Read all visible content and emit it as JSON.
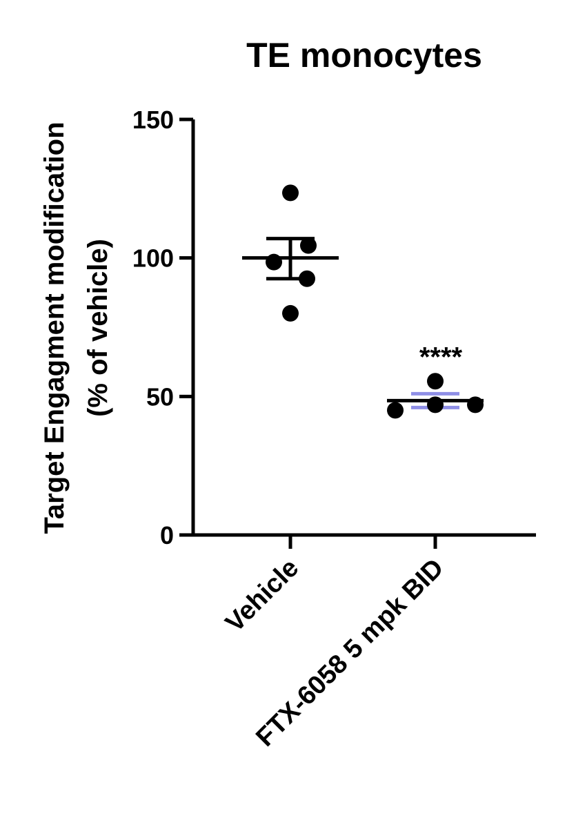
{
  "chart_data": {
    "type": "scatter",
    "title": "TE monocytes",
    "ylabel_line1": "Target Engagment modification",
    "ylabel_line2": "(% of vehicle)",
    "xlabel": "",
    "ylim": [
      0,
      150
    ],
    "yticks": [
      "0",
      "50",
      "100",
      "150"
    ],
    "grid": false,
    "categories": [
      "Vehicle",
      "FTX-6058 5 mpk BID"
    ],
    "groups": [
      {
        "category": "Vehicle",
        "points": [
          123.5,
          104.5,
          98.5,
          92.5,
          80.0
        ],
        "mean": 100.0,
        "sem_upper": 107.0,
        "sem_lower": 92.5,
        "mean_color": "#000000",
        "sem_color": "#000000",
        "annotation": ""
      },
      {
        "category": "FTX-6058 5 mpk BID",
        "points": [
          55.5,
          47.0,
          47.0,
          45.0
        ],
        "mean": 48.5,
        "sem_upper": 51.0,
        "sem_lower": 46.0,
        "mean_color": "#000000",
        "sem_color": "#8f8fe6",
        "annotation": "****"
      }
    ],
    "point_color": "#000000"
  }
}
